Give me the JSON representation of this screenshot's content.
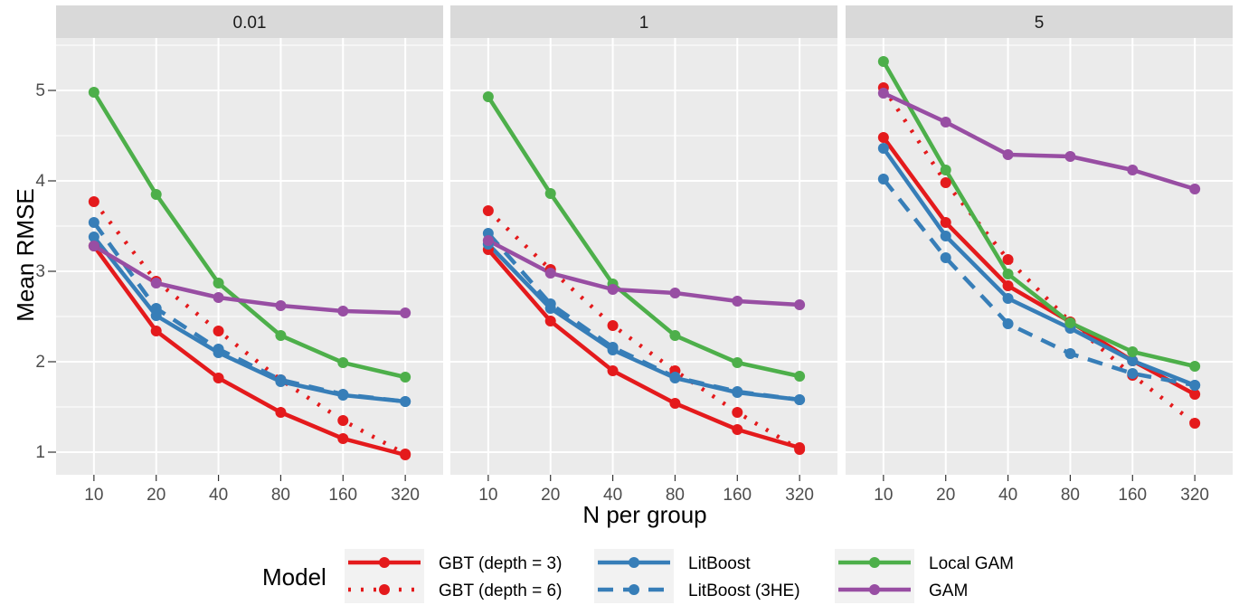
{
  "chart_data": {
    "type": "line",
    "facets": [
      "0.01",
      "1",
      "5"
    ],
    "x_categories": [
      "10",
      "20",
      "40",
      "80",
      "160",
      "320"
    ],
    "y_ticks": [
      1,
      2,
      3,
      4,
      5
    ],
    "ylim": [
      0.75,
      5.58
    ],
    "xlabel": "N per group",
    "ylabel": "Mean RMSE",
    "legend_title": "Model",
    "legend_position": "bottom",
    "grid": true,
    "series": [
      {
        "name": "GBT (depth = 3)",
        "color": "#E41A1C",
        "linetype": "solid",
        "values": {
          "0.01": [
            3.28,
            2.34,
            1.82,
            1.44,
            1.15,
            0.97
          ],
          "1": [
            3.24,
            2.45,
            1.9,
            1.54,
            1.25,
            1.05
          ],
          "5": [
            4.48,
            3.54,
            2.84,
            2.44,
            2.01,
            1.64
          ]
        }
      },
      {
        "name": "GBT (depth = 6)",
        "color": "#E41A1C",
        "linetype": "dotted",
        "values": {
          "0.01": [
            3.77,
            2.89,
            2.34,
            1.8,
            1.35,
            0.98
          ],
          "1": [
            3.67,
            3.02,
            2.4,
            1.9,
            1.44,
            1.03
          ],
          "5": [
            5.03,
            3.98,
            3.13,
            2.44,
            1.85,
            1.32
          ]
        }
      },
      {
        "name": "LitBoost",
        "color": "#377EB8",
        "linetype": "solid",
        "values": {
          "0.01": [
            3.38,
            2.51,
            2.1,
            1.78,
            1.63,
            1.56
          ],
          "1": [
            3.3,
            2.59,
            2.13,
            1.82,
            1.66,
            1.58
          ],
          "5": [
            4.36,
            3.39,
            2.7,
            2.37,
            2.01,
            1.74
          ]
        }
      },
      {
        "name": "LitBoost (3HE)",
        "color": "#377EB8",
        "linetype": "dashed",
        "values": {
          "0.01": [
            3.54,
            2.59,
            2.14,
            1.8,
            1.64,
            1.56
          ],
          "1": [
            3.42,
            2.64,
            2.16,
            1.83,
            1.67,
            1.58
          ],
          "5": [
            4.02,
            3.15,
            2.42,
            2.09,
            1.87,
            1.74
          ]
        }
      },
      {
        "name": "Local GAM",
        "color": "#4DAF4A",
        "linetype": "solid",
        "values": {
          "0.01": [
            4.98,
            3.85,
            2.87,
            2.29,
            1.99,
            1.83
          ],
          "1": [
            4.93,
            3.86,
            2.86,
            2.29,
            1.99,
            1.84
          ],
          "5": [
            5.32,
            4.12,
            2.97,
            2.43,
            2.11,
            1.95
          ]
        }
      },
      {
        "name": "GAM",
        "color": "#984EA3",
        "linetype": "solid",
        "values": {
          "0.01": [
            3.28,
            2.87,
            2.71,
            2.62,
            2.56,
            2.54
          ],
          "1": [
            3.34,
            2.98,
            2.8,
            2.76,
            2.67,
            2.63
          ],
          "5": [
            4.97,
            4.65,
            4.29,
            4.27,
            4.12,
            3.91
          ]
        }
      }
    ]
  }
}
